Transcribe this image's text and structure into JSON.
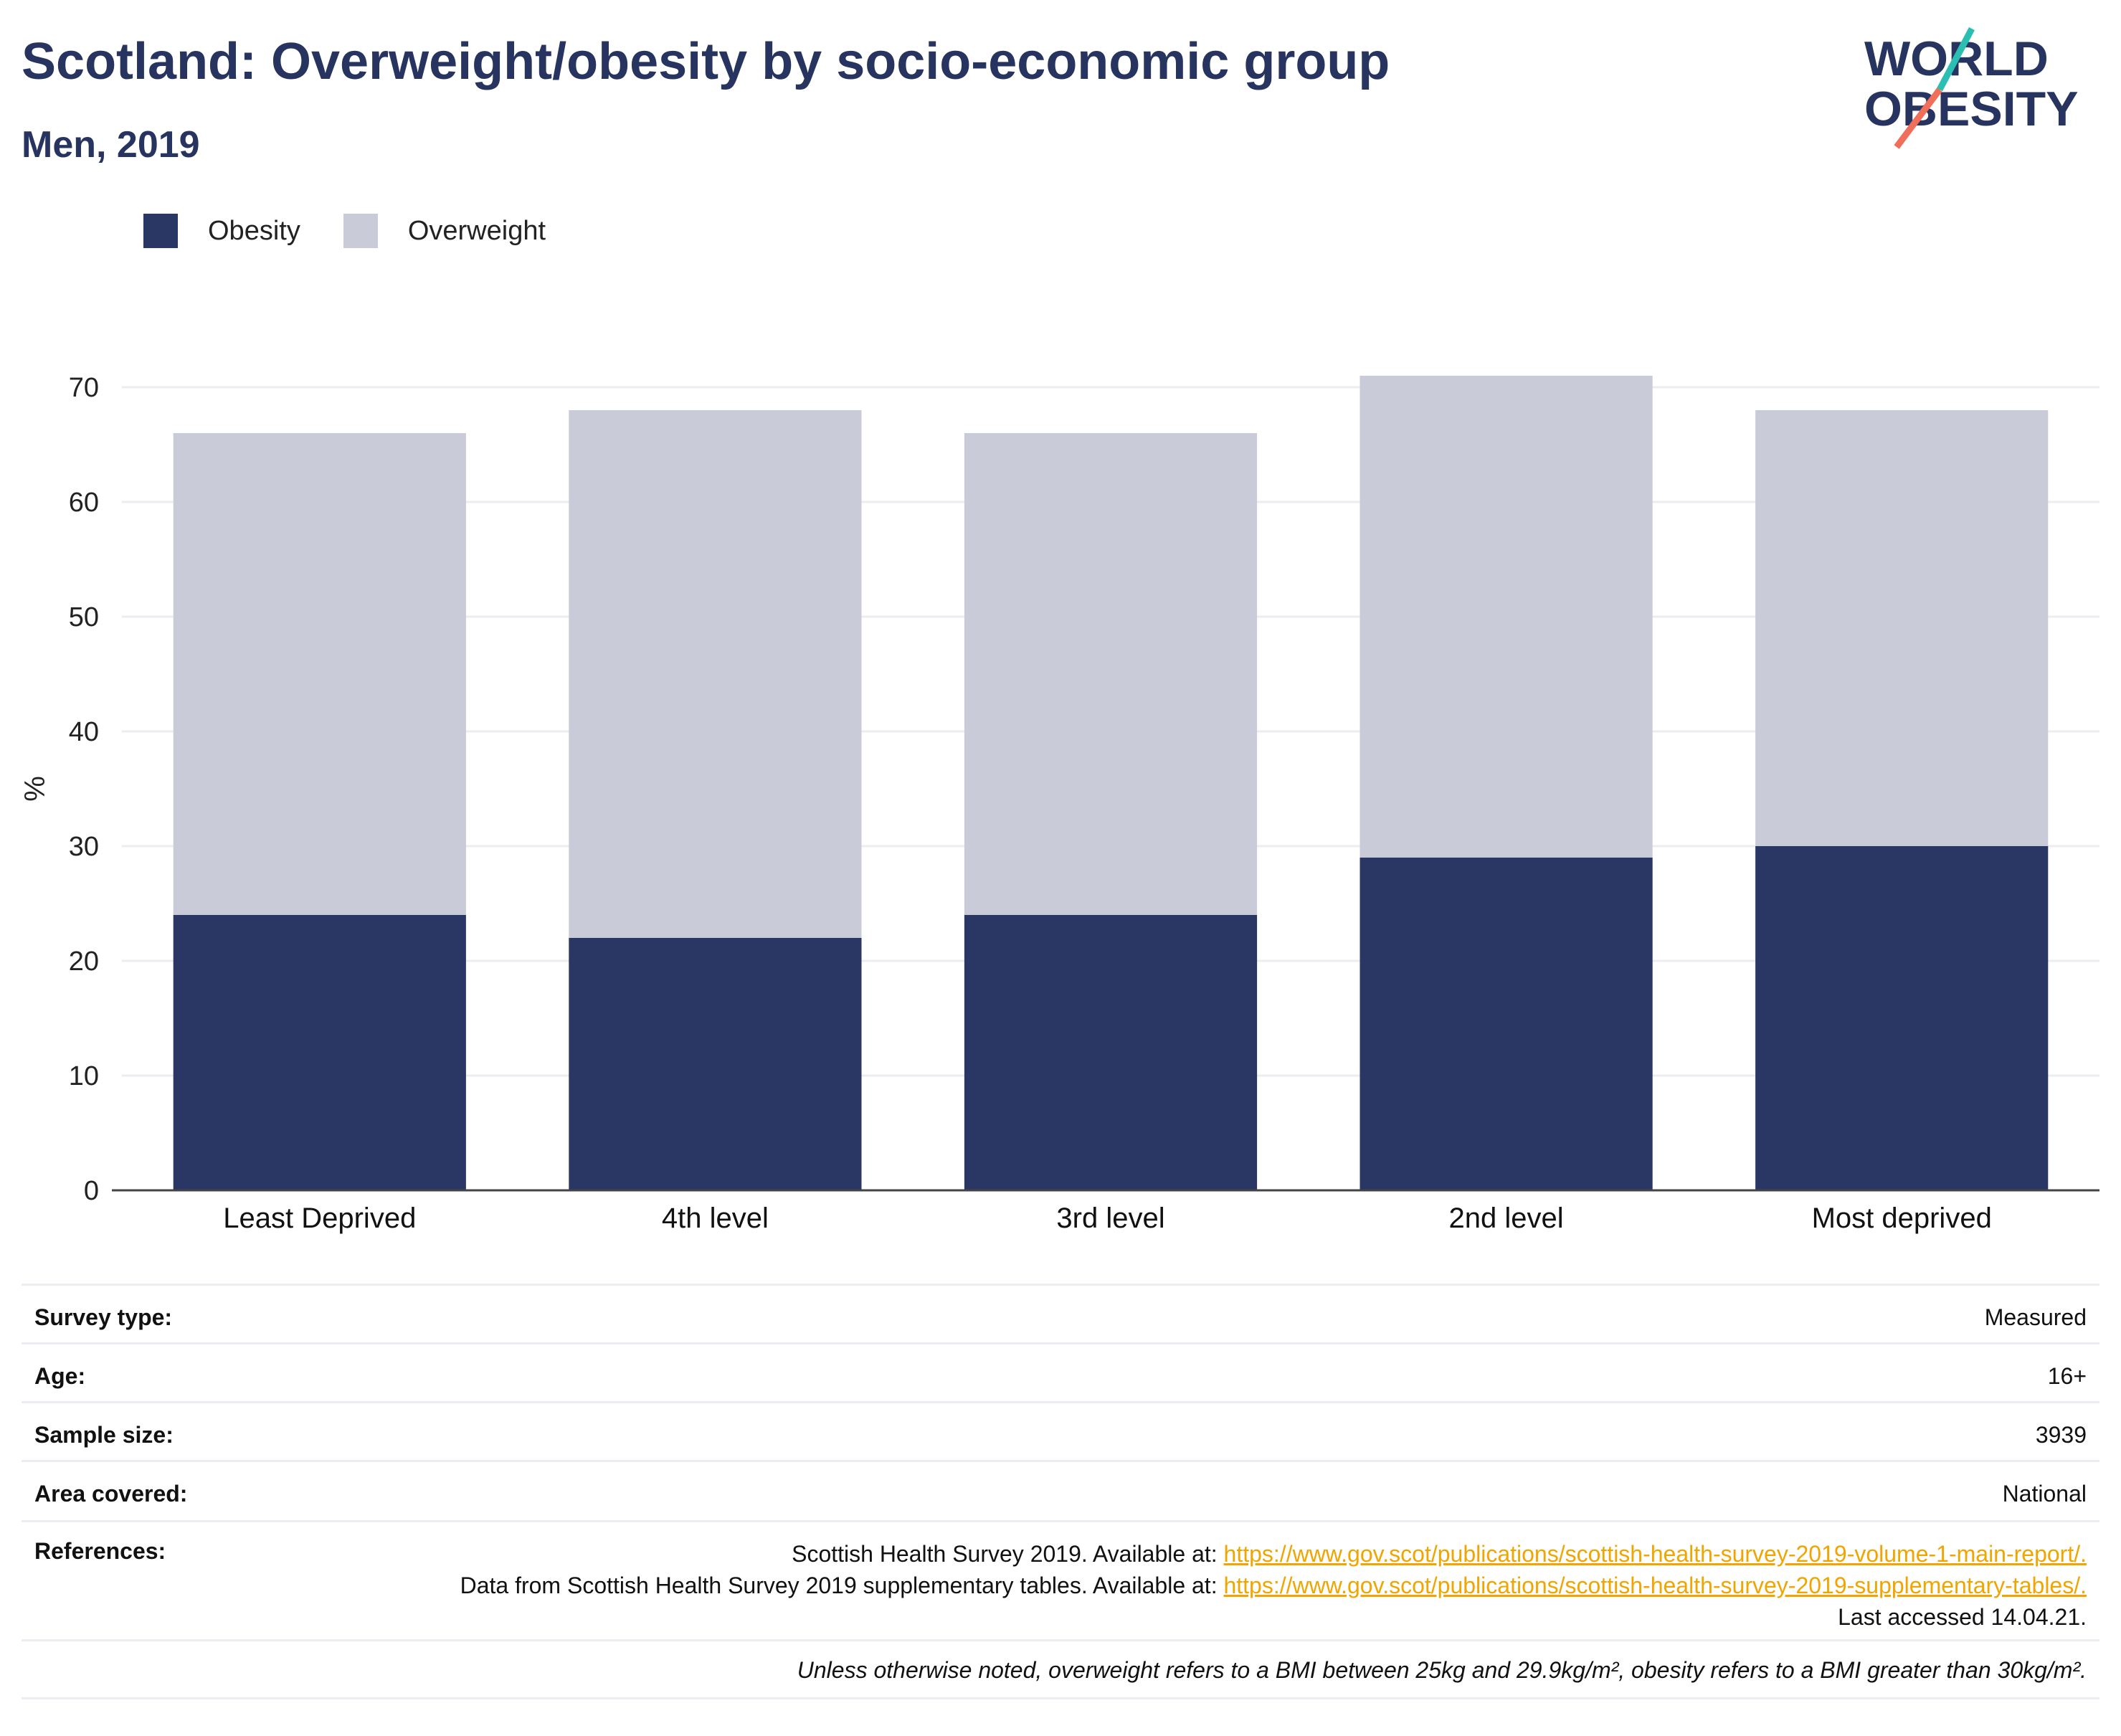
{
  "header": {
    "title": "Scotland: Overweight/obesity by socio-economic group",
    "subtitle": "Men, 2019"
  },
  "logo": {
    "line1": "WORLD",
    "line2": "OBESITY",
    "colors": {
      "text": "#283460",
      "accent_teal": "#2bbfb3",
      "accent_coral": "#ef6f5a"
    }
  },
  "legend": [
    {
      "label": "Obesity",
      "color": "#2a3664"
    },
    {
      "label": "Overweight",
      "color": "#c9cbd8"
    }
  ],
  "chart_data": {
    "type": "bar",
    "stacked": true,
    "categories": [
      "Least Deprived",
      "4th level",
      "3rd level",
      "2nd level",
      "Most deprived"
    ],
    "series": [
      {
        "name": "Obesity",
        "values": [
          24,
          22,
          24,
          29,
          30
        ],
        "color": "#2a3664"
      },
      {
        "name": "Overweight",
        "values": [
          42,
          46,
          42,
          42,
          38
        ],
        "color": "#c9cbd8"
      }
    ],
    "ylabel": "%",
    "xlabel": "",
    "ylim": [
      0,
      70
    ],
    "yticks": [
      0,
      10,
      20,
      30,
      40,
      50,
      60,
      70
    ],
    "grid": true,
    "legend_position": "top-left"
  },
  "meta": {
    "rows": [
      {
        "label": "Survey type:",
        "value": "Measured"
      },
      {
        "label": "Age:",
        "value": "16+"
      },
      {
        "label": "Sample size:",
        "value": "3939"
      },
      {
        "label": "Area covered:",
        "value": "National"
      }
    ],
    "references": {
      "label": "References:",
      "ref1_text": "Scottish Health Survey 2019. Available at: ",
      "ref1_link": "https://www.gov.scot/publications/scottish-health-survey-2019-volume-1-main-report/.",
      "ref2_text": "Data from Scottish Health Survey 2019 supplementary tables. Available at: ",
      "ref2_link": "https://www.gov.scot/publications/scottish-health-survey-2019-supplementary-tables/.",
      "ref2_suffix": " Last accessed 14.04.21."
    },
    "footnote": "Unless otherwise noted, overweight refers to a BMI between 25kg and 29.9kg/m², obesity refers to a BMI greater than 30kg/m²."
  }
}
